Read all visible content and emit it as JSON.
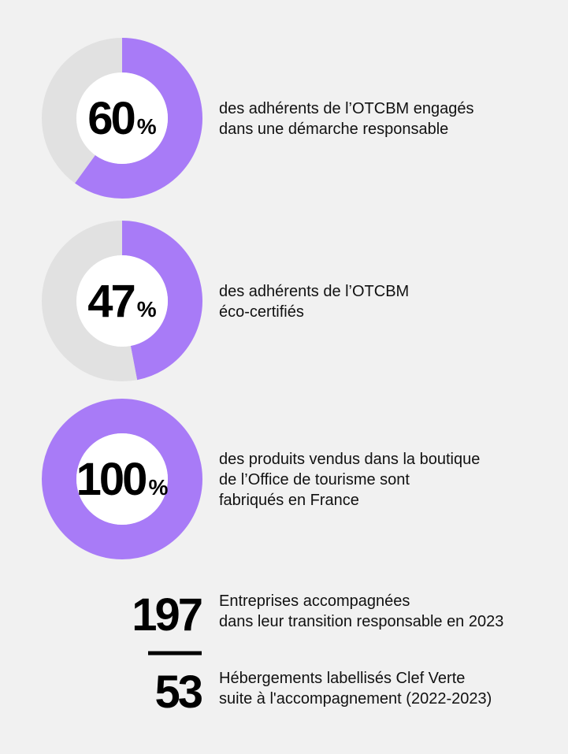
{
  "chart_data": [
    {
      "type": "pie",
      "values": [
        60,
        40
      ],
      "colors": [
        "#a87bf7",
        "#e1e1e1"
      ],
      "unit": "%",
      "text": [
        "des adhérents de l’OTCBM engagés",
        "dans une démarche responsable"
      ]
    },
    {
      "type": "pie",
      "values": [
        47,
        53
      ],
      "colors": [
        "#a87bf7",
        "#e1e1e1"
      ],
      "unit": "%",
      "text": [
        "des adhérents de l’OTCBM",
        "éco-certifiés"
      ]
    },
    {
      "type": "pie",
      "values": [
        100,
        0
      ],
      "colors": [
        "#a87bf7",
        "#e1e1e1"
      ],
      "unit": "%",
      "text": [
        "des produits vendus dans  la boutique",
        "de l’Office de tourisme sont",
        "fabriqués en  France"
      ]
    }
  ],
  "figures": [
    {
      "value": 197,
      "text": [
        "Entreprises  accompagnées",
        "dans leur transition responsable en 2023"
      ]
    },
    {
      "value": 53,
      "text": [
        "Hébergements labellisés Clef Verte",
        "suite à l'accompagnement (2022-2023)"
      ]
    }
  ]
}
